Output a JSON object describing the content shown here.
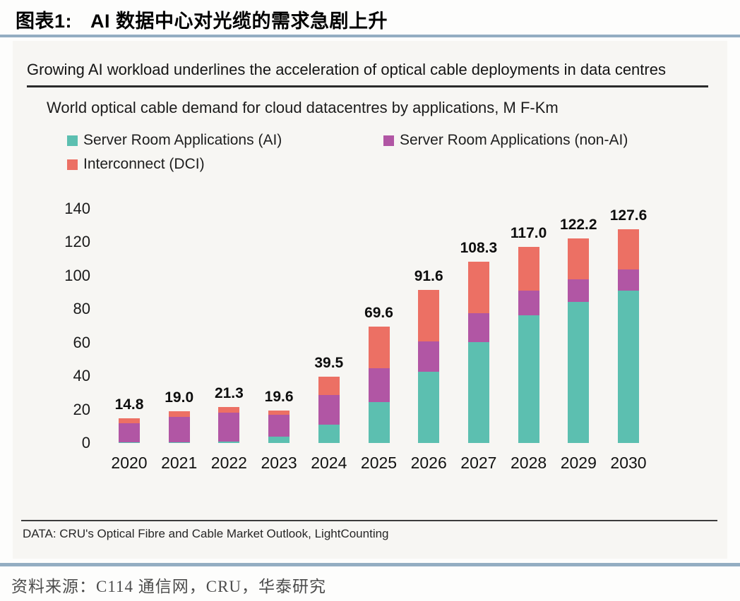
{
  "page": {
    "title_label": "图表1:",
    "title_text": "AI 数据中心对光缆的需求急剧上升",
    "footer_source": "资料来源：C114 通信网，CRU，华泰研究"
  },
  "chart": {
    "headline": "Growing AI workload underlines the acceleration of optical cable deployments in data centres",
    "subtitle": "World optical cable demand for cloud datacentres by applications, M F-Km",
    "data_note": "DATA: CRU's Optical Fibre and Cable Market Outlook, LightCounting"
  },
  "colors": {
    "divider_accent": "#93adc2",
    "series_ai": "#5cbfb0",
    "series_non_ai": "#b156a4",
    "series_dci": "#ec7064"
  },
  "chart_data": {
    "type": "bar",
    "stacked": true,
    "title": "World optical cable demand for cloud datacentres by applications, M F-Km",
    "xlabel": "",
    "ylabel": "",
    "ylim": [
      0,
      140
    ],
    "y_ticks": [
      0,
      20,
      40,
      60,
      80,
      100,
      120,
      140
    ],
    "grid": false,
    "legend_position": "top-left",
    "categories": [
      "2020",
      "2021",
      "2022",
      "2023",
      "2024",
      "2025",
      "2026",
      "2027",
      "2028",
      "2029",
      "2030"
    ],
    "series": [
      {
        "name": "Server Room Applications (AI)",
        "color": "#5cbfb0",
        "values": [
          0.3,
          0.5,
          1.0,
          4.0,
          11.0,
          24.5,
          42.5,
          60.3,
          76.4,
          84.3,
          91.2
        ]
      },
      {
        "name": "Server Room Applications (non-AI)",
        "color": "#b156a4",
        "values": [
          11.6,
          15.0,
          17.3,
          12.8,
          17.5,
          20.3,
          18.3,
          17.3,
          14.8,
          13.7,
          12.3
        ]
      },
      {
        "name": "Interconnect (DCI)",
        "color": "#ec7064",
        "values": [
          2.9,
          3.5,
          3.0,
          2.8,
          11.0,
          24.8,
          30.8,
          30.7,
          25.8,
          24.2,
          24.1
        ]
      }
    ],
    "totals": [
      14.8,
      19.0,
      21.3,
      19.6,
      39.5,
      69.6,
      91.6,
      108.3,
      117.0,
      122.2,
      127.6
    ],
    "total_labels": [
      "14.8",
      "19.0",
      "21.3",
      "19.6",
      "39.5",
      "69.6",
      "91.6",
      "108.3",
      "117.0",
      "122.2",
      "127.6"
    ]
  }
}
